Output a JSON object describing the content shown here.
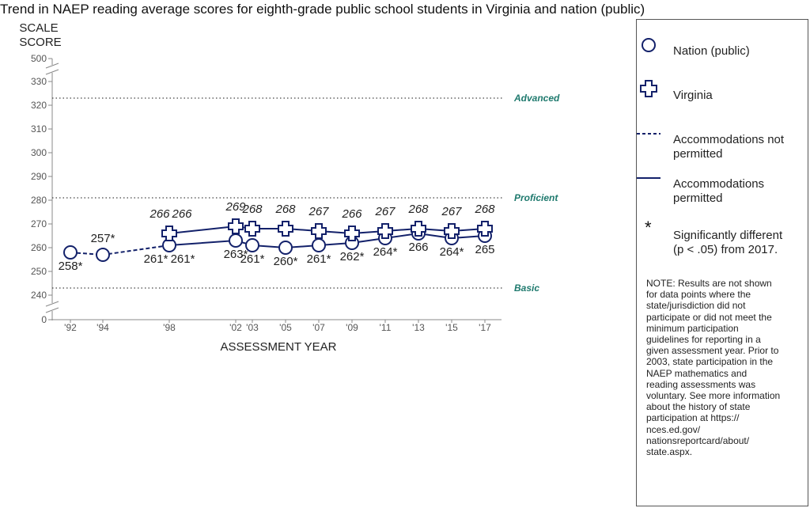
{
  "title": "Trend in NAEP reading average scores for eighth-grade public school students in Virginia and nation (public)",
  "colors": {
    "series": "#13216a",
    "achievement": "#1f7a6e",
    "axis": "#888888"
  },
  "legend": {
    "nation": "Nation (public)",
    "virginia": "Virginia",
    "not_permitted": "Accommodations not permitted",
    "permitted": "Accommodations permitted",
    "star_symbol": "*",
    "significance": "Significantly different (p < .05) from 2017.",
    "note": "NOTE: Results are not shown for data points where the state/jurisdiction did not participate or did not meet the minimum participation guidelines for reporting in a given assessment year. Prior to 2003, state participation in the NAEP mathematics and reading assessments was voluntary. See more information about the history of state participation at https:// nces.ed.gov/ nationsreportcard/about/ state.aspx."
  },
  "chart_data": {
    "type": "line",
    "title": "Trend in NAEP reading average scores for eighth-grade public school students in Virginia and nation (public)",
    "ylabel": "SCALE SCORE",
    "xlabel": "ASSESSMENT YEAR",
    "ylim": [
      240,
      330
    ],
    "y_ticks": [
      0,
      240,
      250,
      260,
      270,
      280,
      290,
      300,
      310,
      320,
      330,
      500
    ],
    "axis_break": true,
    "x": [
      1992,
      1994,
      1998,
      2002,
      2003,
      2005,
      2007,
      2009,
      2011,
      2013,
      2015,
      2017
    ],
    "x_tick_labels": [
      "'92",
      "'94",
      "'98",
      "'02",
      "'03",
      "'05",
      "'07",
      "'09",
      "'11",
      "'13",
      "'15",
      "'17"
    ],
    "achievement_levels": [
      {
        "name": "Advanced",
        "value": 323
      },
      {
        "name": "Proficient",
        "value": 281
      },
      {
        "name": "Basic",
        "value": 243
      }
    ],
    "series": [
      {
        "name": "Nation (public)",
        "marker": "circle",
        "points": [
          {
            "x": 1992,
            "y": 258,
            "label": "258*",
            "accommodations": "not permitted"
          },
          {
            "x": 1994,
            "y": 257,
            "label": "257*",
            "accommodations": "not permitted"
          },
          {
            "x": 1998,
            "y": 261,
            "label": "261*",
            "accommodations": "not permitted"
          },
          {
            "x": 1998,
            "y": 261,
            "label": "261*",
            "accommodations": "permitted"
          },
          {
            "x": 2002,
            "y": 263,
            "label": "263*",
            "accommodations": "permitted"
          },
          {
            "x": 2003,
            "y": 261,
            "label": "261*",
            "accommodations": "permitted"
          },
          {
            "x": 2005,
            "y": 260,
            "label": "260*",
            "accommodations": "permitted"
          },
          {
            "x": 2007,
            "y": 261,
            "label": "261*",
            "accommodations": "permitted"
          },
          {
            "x": 2009,
            "y": 262,
            "label": "262*",
            "accommodations": "permitted"
          },
          {
            "x": 2011,
            "y": 264,
            "label": "264*",
            "accommodations": "permitted"
          },
          {
            "x": 2013,
            "y": 266,
            "label": "266",
            "accommodations": "permitted"
          },
          {
            "x": 2015,
            "y": 264,
            "label": "264*",
            "accommodations": "permitted"
          },
          {
            "x": 2017,
            "y": 265,
            "label": "265",
            "accommodations": "permitted"
          }
        ]
      },
      {
        "name": "Virginia",
        "marker": "plus",
        "points": [
          {
            "x": 1998,
            "y": 266,
            "label": "266",
            "accommodations": "not permitted"
          },
          {
            "x": 1998,
            "y": 266,
            "label": "266",
            "accommodations": "permitted"
          },
          {
            "x": 2002,
            "y": 269,
            "label": "269",
            "accommodations": "permitted"
          },
          {
            "x": 2003,
            "y": 268,
            "label": "268",
            "accommodations": "permitted"
          },
          {
            "x": 2005,
            "y": 268,
            "label": "268",
            "accommodations": "permitted"
          },
          {
            "x": 2007,
            "y": 267,
            "label": "267",
            "accommodations": "permitted"
          },
          {
            "x": 2009,
            "y": 266,
            "label": "266",
            "accommodations": "permitted"
          },
          {
            "x": 2011,
            "y": 267,
            "label": "267",
            "accommodations": "permitted"
          },
          {
            "x": 2013,
            "y": 268,
            "label": "268",
            "accommodations": "permitted"
          },
          {
            "x": 2015,
            "y": 267,
            "label": "267",
            "accommodations": "permitted"
          },
          {
            "x": 2017,
            "y": 268,
            "label": "268",
            "accommodations": "permitted"
          }
        ]
      }
    ]
  }
}
